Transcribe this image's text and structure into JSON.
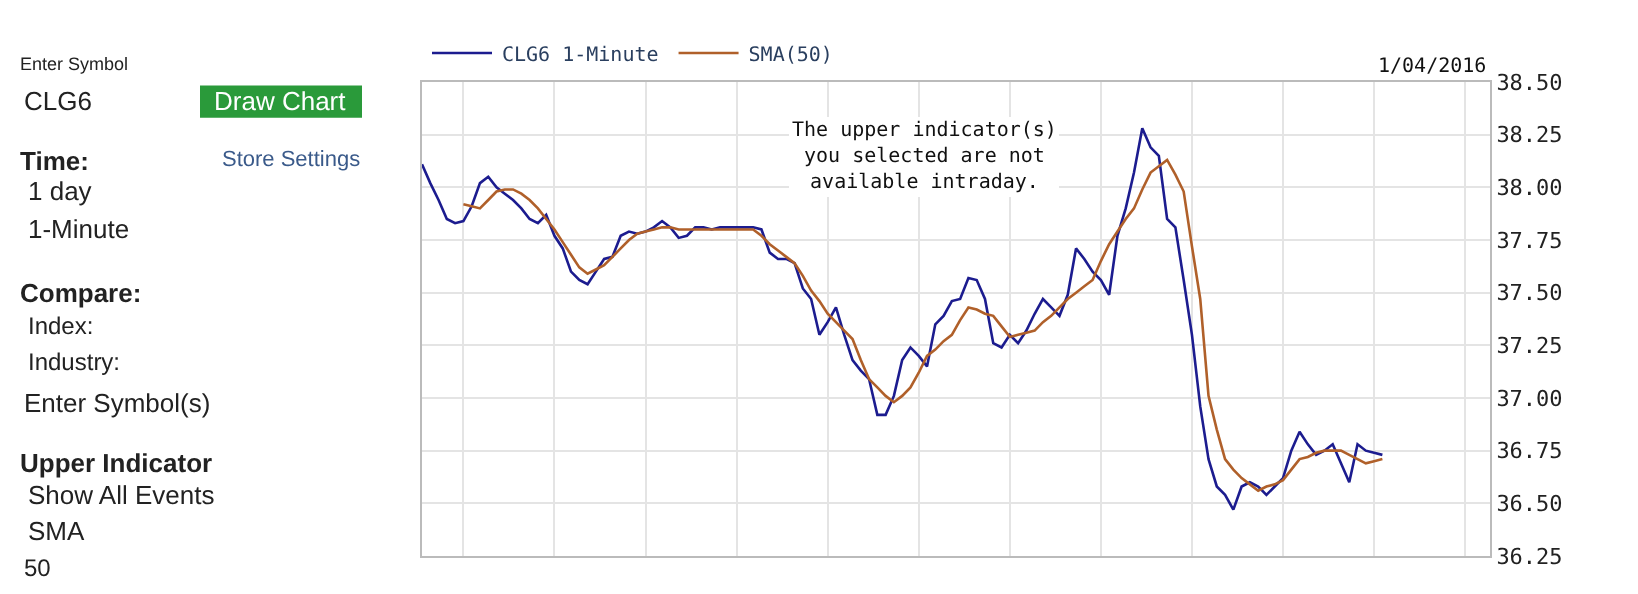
{
  "chart_data": [
    {
      "type": "line",
      "legend": "top left",
      "grid": true,
      "marker": "none",
      "line_style": "solid",
      "tick_labels": "y",
      "ylim": [
        36.25,
        38.5
      ],
      "yticks": [
        {
          "value": 36.25,
          "label": "36.25"
        },
        {
          "value": 36.5,
          "label": "36.50"
        },
        {
          "value": 36.75,
          "label": "36.75"
        },
        {
          "value": 37.0,
          "label": "37.00"
        },
        {
          "value": 37.25,
          "label": "37.25"
        },
        {
          "value": 37.5,
          "label": "37.50"
        },
        {
          "value": 37.75,
          "label": "37.75"
        },
        {
          "value": 38.0,
          "label": "38.00"
        },
        {
          "value": 38.25,
          "label": "38.25"
        },
        {
          "value": 38.5,
          "label": "38.50"
        }
      ],
      "categories": [
        null,
        null,
        null,
        null,
        null,
        null,
        null,
        null,
        null,
        null,
        null,
        null,
        null,
        null,
        null,
        null,
        null,
        null,
        null,
        null,
        null,
        null,
        null,
        null,
        null,
        null,
        null,
        null,
        null,
        null,
        null,
        null,
        null,
        null,
        null,
        null,
        null,
        null,
        null,
        null,
        null,
        null,
        null,
        null,
        null,
        null,
        null,
        null,
        null,
        null,
        null,
        null,
        null,
        null,
        null,
        null,
        null,
        null,
        null,
        null,
        null,
        null,
        null,
        null,
        null,
        null,
        null,
        null,
        null,
        null,
        null,
        null,
        null,
        null,
        null,
        null,
        null,
        null,
        null,
        null,
        null,
        null,
        null,
        null,
        null,
        null,
        null,
        null,
        null,
        null,
        null,
        null,
        null,
        null,
        null,
        null,
        null,
        null,
        null,
        null,
        null,
        null,
        null,
        null,
        null,
        null,
        null,
        null,
        null,
        null,
        null,
        null,
        null,
        null,
        null,
        null,
        null,
        null,
        null,
        null,
        null,
        null,
        null,
        null,
        null,
        null,
        null,
        null,
        null,
        null
      ],
      "series": [
        {
          "name": "CLG6 1-Minute",
          "color": "#1c1c8f",
          "values": [
            38.11,
            38.02,
            37.94,
            37.85,
            37.83,
            37.84,
            37.91,
            38.02,
            38.05,
            38.0,
            37.97,
            37.94,
            37.9,
            37.85,
            37.83,
            37.87,
            37.77,
            37.71,
            37.6,
            37.56,
            37.54,
            37.6,
            37.66,
            37.67,
            37.77,
            37.79,
            37.78,
            37.79,
            37.81,
            37.84,
            37.81,
            37.76,
            37.77,
            37.81,
            37.81,
            37.8,
            37.81,
            37.81,
            37.81,
            37.81,
            37.81,
            37.8,
            37.69,
            37.66,
            37.66,
            37.64,
            37.52,
            37.47,
            37.3,
            37.36,
            37.43,
            37.3,
            37.18,
            37.13,
            37.09,
            36.92,
            36.92,
            37.01,
            37.18,
            37.24,
            37.2,
            37.15,
            37.35,
            37.39,
            37.46,
            37.47,
            37.57,
            37.56,
            37.47,
            37.26,
            37.24,
            37.3,
            37.26,
            37.32,
            37.4,
            37.47,
            37.43,
            37.39,
            37.49,
            37.71,
            37.66,
            37.6,
            37.56,
            37.49,
            37.77,
            37.9,
            38.07,
            38.28,
            38.19,
            38.15,
            37.85,
            37.81,
            37.56,
            37.3,
            36.96,
            36.71,
            36.58,
            36.54,
            36.47,
            36.58,
            36.6,
            36.58,
            36.54,
            36.58,
            36.62,
            36.75,
            36.84,
            36.78,
            36.73,
            36.75,
            36.78,
            36.69,
            36.6,
            36.78,
            36.75,
            36.74,
            36.73,
            null,
            null,
            null,
            null,
            null,
            null,
            null,
            null,
            null,
            null,
            null,
            null,
            null
          ]
        },
        {
          "name": "SMA(50)",
          "color": "#b0602a",
          "values": [
            null,
            null,
            null,
            null,
            null,
            37.92,
            37.91,
            37.9,
            37.94,
            37.98,
            37.99,
            37.99,
            37.97,
            37.94,
            37.9,
            37.85,
            37.8,
            37.74,
            37.68,
            37.62,
            37.59,
            37.61,
            37.63,
            37.67,
            37.71,
            37.75,
            37.78,
            37.79,
            37.8,
            37.81,
            37.81,
            37.8,
            37.8,
            37.8,
            37.8,
            37.8,
            37.8,
            37.8,
            37.8,
            37.8,
            37.8,
            37.77,
            37.73,
            37.7,
            37.67,
            37.64,
            37.58,
            37.51,
            37.46,
            37.4,
            37.36,
            37.32,
            37.28,
            37.18,
            37.09,
            37.05,
            37.01,
            36.98,
            37.01,
            37.05,
            37.12,
            37.2,
            37.23,
            37.27,
            37.3,
            37.37,
            37.43,
            37.42,
            37.4,
            37.39,
            37.34,
            37.29,
            37.3,
            37.31,
            37.32,
            37.36,
            37.39,
            37.43,
            37.47,
            37.5,
            37.53,
            37.56,
            37.65,
            37.73,
            37.79,
            37.85,
            37.9,
            37.99,
            38.07,
            38.1,
            38.13,
            38.06,
            37.98,
            37.72,
            37.47,
            37.01,
            36.85,
            36.71,
            36.66,
            36.62,
            36.59,
            36.56,
            36.58,
            36.59,
            36.61,
            36.66,
            36.71,
            36.72,
            36.74,
            36.75,
            36.75,
            36.75,
            36.73,
            36.71,
            36.69,
            36.7,
            36.71,
            null,
            null,
            null,
            null,
            null,
            null,
            null,
            null,
            null,
            null,
            null,
            null,
            null
          ]
        }
      ],
      "annotations": [
        "1/04/2016",
        "The upper indicator(s)\nyou selected are not\navailable intraday."
      ]
    },
    {
      "type": "other",
      "annotations": [
        "Enter Symbol",
        "CLG6",
        "Draw Chart",
        "Time:",
        "Store Settings",
        "1 day",
        "1-Minute",
        "Compare:",
        "Index:",
        "Industry:",
        "Enter Symbol(s)",
        "Upper Indicator",
        "Show All Events",
        "SMA",
        "50"
      ]
    }
  ]
}
